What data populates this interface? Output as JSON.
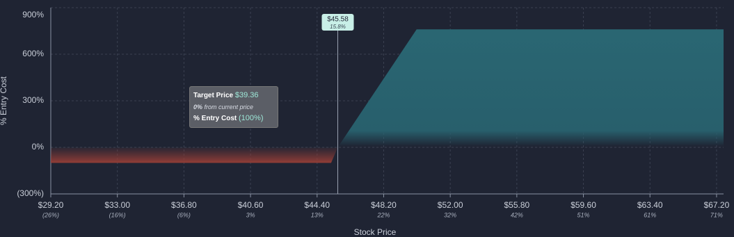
{
  "chart_data": {
    "type": "area",
    "x_label": "Stock Price",
    "y_label": "% Entry Cost",
    "x": [
      29.2,
      45.2,
      45.58,
      50.08,
      67.6
    ],
    "series": [
      {
        "values": [
          -100,
          -100,
          0,
          760,
          760
        ]
      }
    ],
    "xlim": [
      29.2,
      67.6
    ],
    "ylim": [
      -300,
      900
    ],
    "xticks": [
      {
        "value": 29.2,
        "label": "$29.20"
      },
      {
        "value": 33,
        "label": "$33.00"
      },
      {
        "value": 36.8,
        "label": "$36.80"
      },
      {
        "value": 40.6,
        "label": "$40.60"
      },
      {
        "value": 44.4,
        "label": "$44.40"
      },
      {
        "value": 48.2,
        "label": "$48.20"
      },
      {
        "value": 52,
        "label": "$52.00"
      },
      {
        "value": 55.8,
        "label": "$55.80"
      },
      {
        "value": 59.6,
        "label": "$59.60"
      },
      {
        "value": 63.4,
        "label": "$63.40"
      },
      {
        "value": 67.2,
        "label": "$67.20"
      }
    ],
    "x_sublabels": [
      "(26%)",
      "(16%)",
      "(6%)",
      "3%",
      "13%",
      "22%",
      "32%",
      "42%",
      "51%",
      "61%",
      "71%"
    ],
    "yticks": [
      {
        "value": 900,
        "label": "900%"
      },
      {
        "value": 600,
        "label": "600%"
      },
      {
        "value": 300,
        "label": "300%"
      },
      {
        "value": 0,
        "label": "0%"
      },
      {
        "value": -300,
        "label": "(300%)"
      }
    ],
    "grid": true,
    "marker": {
      "x": {
        "value": 45.58,
        "label": "$45.58"
      },
      "sublabel": "15.8%"
    },
    "tooltip": {
      "title": "Target Price",
      "price": "$39.36",
      "change": "0%",
      "change_text": "from current price",
      "cost_label": "% Entry Cost",
      "cost": "(100%)"
    }
  }
}
